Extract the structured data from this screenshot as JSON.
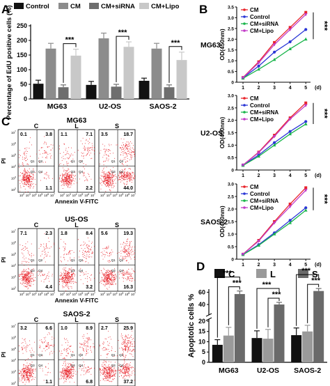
{
  "colors": {
    "control": "#111111",
    "cm": "#8c8c8c",
    "sirna": "#6e6e6e",
    "lipo": "#c8c8c8",
    "line_cm": "#e8232a",
    "line_control": "#2a36d6",
    "line_sirna": "#19b54b",
    "line_lipo": "#c23cc8",
    "bar_c": "#111111",
    "bar_l": "#9a9a9a",
    "bar_s": "#6a6a6a",
    "dots": "#e8232a"
  },
  "panels": {
    "a": {
      "letter": "A",
      "chart_data": {
        "type": "bar",
        "title": "",
        "xlabel": "",
        "ylabel": "Percentage of EdU positive cells (%)",
        "ylim": [
          0,
          250
        ],
        "yticks": [
          "0",
          "50",
          "100",
          "150",
          "200",
          "250"
        ],
        "categories": [
          "MG63",
          "U2-OS",
          "SAOS-2"
        ],
        "series": [
          {
            "name": "Control",
            "values": [
              52,
              48,
              62
            ],
            "errors": [
              12,
              12,
              9
            ]
          },
          {
            "name": "CM",
            "values": [
              172,
              207,
              172
            ],
            "errors": [
              18,
              18,
              18
            ]
          },
          {
            "name": "CM+siRNA",
            "values": [
              40,
              42,
              40
            ],
            "errors": [
              8,
              8,
              8
            ]
          },
          {
            "name": "CM+Lipo",
            "values": [
              148,
              178,
              133
            ],
            "errors": [
              22,
              17,
              27
            ]
          }
        ],
        "significance": [
          "***",
          "***",
          "***"
        ],
        "legend_position": "top"
      }
    },
    "b": {
      "letter": "B",
      "day_unit": "(d)",
      "charts": [
        {
          "type": "line",
          "cell_line": "MG63",
          "ylabel": "OD(450nm)",
          "ylim": [
            0,
            3.5
          ],
          "yticks": [
            "0",
            "0.5",
            "1.0",
            "1.5",
            "2.0",
            "2.5",
            "3.0",
            "3.5"
          ],
          "x": [
            1,
            2,
            3,
            4,
            5
          ],
          "xticks": [
            "1",
            "2",
            "3",
            "4",
            "5"
          ],
          "series": [
            {
              "name": "CM",
              "values": [
                0.22,
                0.95,
                1.85,
                2.55,
                3.25
              ]
            },
            {
              "name": "Control",
              "values": [
                0.2,
                0.75,
                1.4,
                1.88,
                2.45
              ]
            },
            {
              "name": "CM+siRNA",
              "values": [
                0.18,
                0.6,
                1.05,
                1.55,
                2.0
              ]
            },
            {
              "name": "CM+Lipo",
              "values": [
                0.21,
                0.9,
                1.75,
                2.45,
                3.15
              ]
            }
          ],
          "significance": "***"
        },
        {
          "type": "line",
          "cell_line": "U2-OS",
          "ylabel": "OD(450nm)",
          "ylim": [
            0,
            3.0
          ],
          "yticks": [
            "0",
            "0.5",
            "1.0",
            "1.5",
            "2.0",
            "2.5",
            "3.0"
          ],
          "x": [
            1,
            2,
            3,
            4,
            5
          ],
          "xticks": [
            "1",
            "2",
            "3",
            "4",
            "5"
          ],
          "series": [
            {
              "name": "CM",
              "values": [
                0.2,
                0.72,
                1.4,
                2.1,
                2.7
              ]
            },
            {
              "name": "Control",
              "values": [
                0.2,
                0.6,
                1.1,
                1.55,
                1.95
              ]
            },
            {
              "name": "CM+siRNA",
              "values": [
                0.18,
                0.55,
                1.0,
                1.45,
                1.85
              ]
            },
            {
              "name": "CM+Lipo",
              "values": [
                0.2,
                0.7,
                1.35,
                2.05,
                2.6
              ]
            }
          ],
          "significance": "***"
        },
        {
          "type": "line",
          "cell_line": "SAOS-2",
          "ylabel": "OD(450nm)",
          "ylim": [
            0,
            3.0
          ],
          "yticks": [
            "0",
            "0.5",
            "1.0",
            "1.5",
            "2.0",
            "2.5",
            "3.0"
          ],
          "x": [
            1,
            2,
            3,
            4,
            5
          ],
          "xticks": [
            "1",
            "2",
            "3",
            "4",
            "5"
          ],
          "series": [
            {
              "name": "CM",
              "values": [
                0.2,
                0.75,
                1.5,
                2.2,
                2.85
              ]
            },
            {
              "name": "Control",
              "values": [
                0.19,
                0.58,
                1.05,
                1.55,
                2.05
              ]
            },
            {
              "name": "CM+siRNA",
              "values": [
                0.18,
                0.55,
                1.0,
                1.45,
                1.95
              ]
            },
            {
              "name": "CM+Lipo",
              "values": [
                0.2,
                0.72,
                1.45,
                2.1,
                2.75
              ]
            }
          ],
          "significance": "***"
        }
      ]
    },
    "c": {
      "letter": "C",
      "ylabel": "PI",
      "xlabel": "Annexin V-FITC",
      "column_labels": [
        "C",
        "L",
        "S"
      ],
      "quadrant_labels": [
        "Q1",
        "Q2",
        "Q3",
        "Q4"
      ],
      "tick_exponents": [
        "2",
        "3",
        "4",
        "5",
        "6",
        "7"
      ],
      "rows": [
        {
          "title": "MG63",
          "plots": [
            {
              "ul": "0.1",
              "ur": "3.8",
              "lr": "1.1"
            },
            {
              "ul": "1.1",
              "ur": "7.1",
              "lr": "2.2"
            },
            {
              "ul": "3.5",
              "ur": "18.7",
              "lr": "44.0"
            }
          ]
        },
        {
          "title": "US-OS",
          "plots": [
            {
              "ul": "7.1",
              "ur": "2.3",
              "lr": "4.4"
            },
            {
              "ul": "1.8",
              "ur": "8.4",
              "lr": "3.2"
            },
            {
              "ul": "5.6",
              "ur": "19.3",
              "lr": "16.3"
            }
          ]
        },
        {
          "title": "SAOS-2",
          "plots": [
            {
              "ul": "3.2",
              "ur": "6.6",
              "lr": "1.1"
            },
            {
              "ul": "1.0",
              "ur": "8.9",
              "lr": "6.8"
            },
            {
              "ul": "2.7",
              "ur": "25.9",
              "lr": "37.2"
            }
          ]
        }
      ]
    },
    "d": {
      "letter": "D",
      "chart_data": {
        "type": "bar",
        "title": "",
        "xlabel": "",
        "ylabel": "Apoptotic cells %",
        "ylim": [
          0,
          65
        ],
        "axis_break": [
          21,
          23
        ],
        "yticks": [
          "0",
          "5",
          "10",
          "15",
          "20",
          "40",
          "60"
        ],
        "categories": [
          "MG63",
          "U2-OS",
          "SAOS-2"
        ],
        "series": [
          {
            "name": "C",
            "values": [
              8.5,
              11.8,
              13.2
            ],
            "errors": [
              2.5,
              3.5,
              3.5
            ]
          },
          {
            "name": "L",
            "values": [
              13.0,
              11.5,
              15.0
            ],
            "errors": [
              4.0,
              4.5,
              3.0
            ]
          },
          {
            "name": "S",
            "values": [
              57,
              40,
              62
            ],
            "errors": [
              5,
              3.5,
              4
            ]
          }
        ],
        "significance": [
          "***",
          "***"
        ],
        "legend_position": "top"
      }
    }
  }
}
